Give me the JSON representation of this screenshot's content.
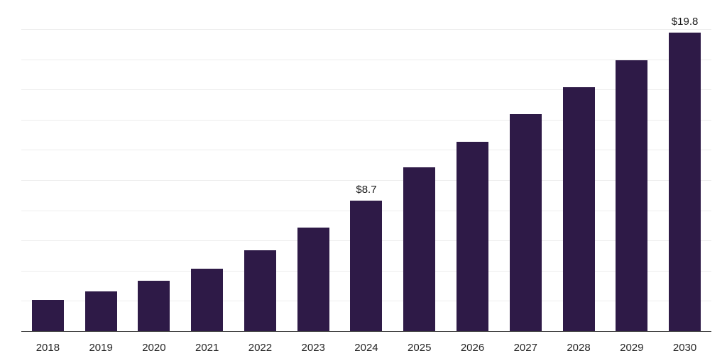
{
  "chart_data": {
    "type": "bar",
    "categories": [
      "2018",
      "2019",
      "2020",
      "2021",
      "2022",
      "2023",
      "2024",
      "2025",
      "2026",
      "2027",
      "2028",
      "2029",
      "2030"
    ],
    "values": [
      2.1,
      2.7,
      3.4,
      4.2,
      5.4,
      6.9,
      8.7,
      10.9,
      12.6,
      14.4,
      16.2,
      18.0,
      19.8
    ],
    "data_labels": {
      "2024": "$8.7",
      "2030": "$19.8"
    },
    "title": "",
    "xlabel": "",
    "ylabel": "",
    "ylim": [
      0,
      21.6
    ],
    "gridline_step": 2,
    "legend": "none",
    "grid": "horizontal",
    "colors": {
      "bar": "#2e1a47",
      "grid": "#ededed",
      "axis": "#3a3a3a",
      "value_label": "#1a1a1a",
      "tick_label": "#262626",
      "background": "#ffffff"
    }
  }
}
